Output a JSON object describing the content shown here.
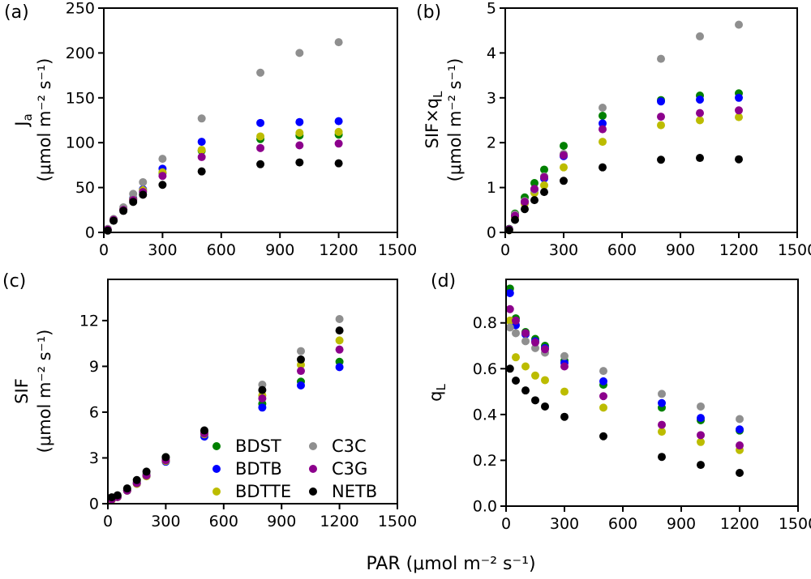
{
  "figure": {
    "xlabel": "PAR (μmol m⁻² s⁻¹)",
    "background_color": "#ffffff",
    "axis_color": "#000000"
  },
  "legend": {
    "position": "inside panel c, lower right, two columns, no frame",
    "entries": [
      {
        "label": "BDST",
        "color": "#008000"
      },
      {
        "label": "BDTB",
        "color": "#0000ff"
      },
      {
        "label": "BDTTE",
        "color": "#bcbc00"
      },
      {
        "label": "C3C",
        "color": "#8f8f8f"
      },
      {
        "label": "C3G",
        "color": "#8c008c"
      },
      {
        "label": "NETB",
        "color": "#000000"
      }
    ]
  },
  "chart_data": [
    {
      "id": "a",
      "panel_label": "(a)",
      "type": "scatter",
      "ylabel_base": "J",
      "ylabel_sub": "a",
      "ylabel_unit": "(μmol m⁻² s⁻¹)",
      "xlim": [
        0,
        1500
      ],
      "ylim": [
        0,
        250
      ],
      "xticks": [
        0,
        300,
        600,
        900,
        1200,
        1500
      ],
      "xtick_labels": [
        "0",
        "300",
        "600",
        "900",
        "1200",
        "1500"
      ],
      "yticks": [
        0,
        50,
        100,
        150,
        200,
        250
      ],
      "ytick_labels": [
        "0",
        "50",
        "100",
        "150",
        "200",
        "250"
      ],
      "x": [
        20,
        50,
        100,
        150,
        200,
        300,
        500,
        800,
        1000,
        1200
      ],
      "series": [
        {
          "name": "BDST",
          "color": "#008000",
          "values": [
            3,
            14,
            26,
            37,
            46,
            66,
            91,
            104,
            108,
            109
          ]
        },
        {
          "name": "BDTB",
          "color": "#0000ff",
          "values": [
            3,
            14,
            26,
            38,
            48,
            71,
            101,
            122,
            123,
            124
          ]
        },
        {
          "name": "BDTTE",
          "color": "#bcbc00",
          "values": [
            3,
            14,
            26,
            37,
            47,
            67,
            92,
            107,
            111,
            112
          ]
        },
        {
          "name": "C3C",
          "color": "#8f8f8f",
          "values": [
            4,
            15,
            28,
            43,
            56,
            82,
            127,
            178,
            200,
            212
          ]
        },
        {
          "name": "C3G",
          "color": "#8c008c",
          "values": [
            3,
            14,
            25,
            36,
            45,
            63,
            84,
            94,
            97,
            99
          ]
        },
        {
          "name": "NETB",
          "color": "#000000",
          "values": [
            2,
            13,
            24,
            34,
            42,
            53,
            68,
            76,
            78,
            77
          ]
        }
      ]
    },
    {
      "id": "b",
      "panel_label": "(b)",
      "type": "scatter",
      "ylabel_base": "SIF×q",
      "ylabel_sub": "L",
      "ylabel_unit": "(μmol m⁻² s⁻¹)",
      "xlim": [
        0,
        1500
      ],
      "ylim": [
        0,
        5
      ],
      "xticks": [
        0,
        300,
        600,
        900,
        1200,
        1500
      ],
      "xtick_labels": [
        "0",
        "300",
        "600",
        "900",
        "1200",
        "1500"
      ],
      "yticks": [
        0,
        1,
        2,
        3,
        4,
        5
      ],
      "ytick_labels": [
        "0",
        "1",
        "2",
        "3",
        "4",
        "5"
      ],
      "x": [
        20,
        50,
        100,
        150,
        200,
        300,
        500,
        800,
        1000,
        1200
      ],
      "series": [
        {
          "name": "BDST",
          "color": "#008000",
          "values": [
            0.08,
            0.42,
            0.78,
            1.1,
            1.4,
            1.93,
            2.6,
            2.95,
            3.05,
            3.1
          ]
        },
        {
          "name": "BDTB",
          "color": "#0000ff",
          "values": [
            0.07,
            0.36,
            0.67,
            0.95,
            1.2,
            1.7,
            2.43,
            2.92,
            2.96,
            3.0
          ]
        },
        {
          "name": "BDTTE",
          "color": "#bcbc00",
          "values": [
            0.05,
            0.34,
            0.64,
            0.88,
            1.05,
            1.45,
            2.02,
            2.39,
            2.5,
            2.57
          ]
        },
        {
          "name": "C3C",
          "color": "#8f8f8f",
          "values": [
            0.07,
            0.4,
            0.7,
            0.95,
            1.25,
            1.75,
            2.78,
            3.87,
            4.37,
            4.63
          ]
        },
        {
          "name": "C3G",
          "color": "#8c008c",
          "values": [
            0.07,
            0.37,
            0.68,
            0.97,
            1.23,
            1.72,
            2.3,
            2.58,
            2.66,
            2.72
          ]
        },
        {
          "name": "NETB",
          "color": "#000000",
          "values": [
            0.05,
            0.28,
            0.52,
            0.72,
            0.9,
            1.15,
            1.45,
            1.62,
            1.66,
            1.63
          ]
        }
      ]
    },
    {
      "id": "c",
      "panel_label": "(c)",
      "type": "scatter",
      "ylabel_base": "SIF",
      "ylabel_sub": "",
      "ylabel_unit": "(μmol m⁻² s⁻¹)",
      "xlim": [
        0,
        1500
      ],
      "ylim": [
        0,
        14.7
      ],
      "xticks": [
        0,
        300,
        600,
        900,
        1200,
        1500
      ],
      "xtick_labels": [
        "0",
        "300",
        "600",
        "900",
        "1200",
        "1500"
      ],
      "yticks": [
        0,
        3,
        6,
        9,
        12
      ],
      "ytick_labels": [
        "0",
        "3",
        "6",
        "9",
        "12"
      ],
      "x": [
        20,
        50,
        100,
        150,
        200,
        300,
        500,
        800,
        1000,
        1200
      ],
      "series": [
        {
          "name": "BDST",
          "color": "#008000",
          "values": [
            0.3,
            0.45,
            0.88,
            1.38,
            1.9,
            3.05,
            4.7,
            6.55,
            8.0,
            9.3
          ]
        },
        {
          "name": "BDTB",
          "color": "#0000ff",
          "values": [
            0.28,
            0.44,
            0.85,
            1.3,
            1.8,
            2.75,
            4.4,
            6.3,
            7.75,
            8.95
          ]
        },
        {
          "name": "BDTTE",
          "color": "#bcbc00",
          "values": [
            0.25,
            0.43,
            0.85,
            1.3,
            1.8,
            2.8,
            4.55,
            7.1,
            9.1,
            10.7
          ]
        },
        {
          "name": "C3C",
          "color": "#8f8f8f",
          "values": [
            0.32,
            0.46,
            0.9,
            1.45,
            1.95,
            2.95,
            4.7,
            7.8,
            10.0,
            12.1
          ]
        },
        {
          "name": "C3G",
          "color": "#8c008c",
          "values": [
            0.28,
            0.44,
            0.86,
            1.35,
            1.85,
            2.85,
            4.6,
            6.9,
            8.7,
            10.1
          ]
        },
        {
          "name": "NETB",
          "color": "#000000",
          "values": [
            0.42,
            0.55,
            1.0,
            1.55,
            2.1,
            3.05,
            4.8,
            7.45,
            9.45,
            11.35
          ]
        }
      ]
    },
    {
      "id": "d",
      "panel_label": "(d)",
      "type": "scatter",
      "ylabel_base": "q",
      "ylabel_sub": "L",
      "ylabel_unit": "",
      "xlim": [
        0,
        1500
      ],
      "ylim": [
        0,
        0.99
      ],
      "xticks": [
        0,
        300,
        600,
        900,
        1200,
        1500
      ],
      "xtick_labels": [
        "0",
        "300",
        "600",
        "900",
        "1200",
        "1500"
      ],
      "yticks": [
        0,
        0.2,
        0.4,
        0.6,
        0.8
      ],
      "ytick_labels": [
        "0.0",
        "0.2",
        "0.4",
        "0.6",
        "0.8"
      ],
      "x": [
        20,
        50,
        100,
        150,
        200,
        300,
        500,
        800,
        1000,
        1200
      ],
      "series": [
        {
          "name": "BDST",
          "color": "#008000",
          "values": [
            0.95,
            0.82,
            0.76,
            0.73,
            0.7,
            0.635,
            0.53,
            0.43,
            0.375,
            0.33
          ]
        },
        {
          "name": "BDTB",
          "color": "#0000ff",
          "values": [
            0.93,
            0.79,
            0.75,
            0.72,
            0.69,
            0.625,
            0.545,
            0.45,
            0.385,
            0.335
          ]
        },
        {
          "name": "BDTTE",
          "color": "#bcbc00",
          "values": [
            0.81,
            0.65,
            0.61,
            0.57,
            0.55,
            0.5,
            0.43,
            0.325,
            0.28,
            0.245
          ]
        },
        {
          "name": "C3C",
          "color": "#8f8f8f",
          "values": [
            0.78,
            0.755,
            0.72,
            0.69,
            0.67,
            0.655,
            0.59,
            0.49,
            0.435,
            0.38
          ]
        },
        {
          "name": "C3G",
          "color": "#8c008c",
          "values": [
            0.86,
            0.81,
            0.755,
            0.715,
            0.685,
            0.61,
            0.48,
            0.355,
            0.31,
            0.265
          ]
        },
        {
          "name": "NETB",
          "color": "#000000",
          "values": [
            0.6,
            0.548,
            0.505,
            0.462,
            0.435,
            0.39,
            0.305,
            0.215,
            0.18,
            0.145
          ]
        }
      ]
    }
  ]
}
